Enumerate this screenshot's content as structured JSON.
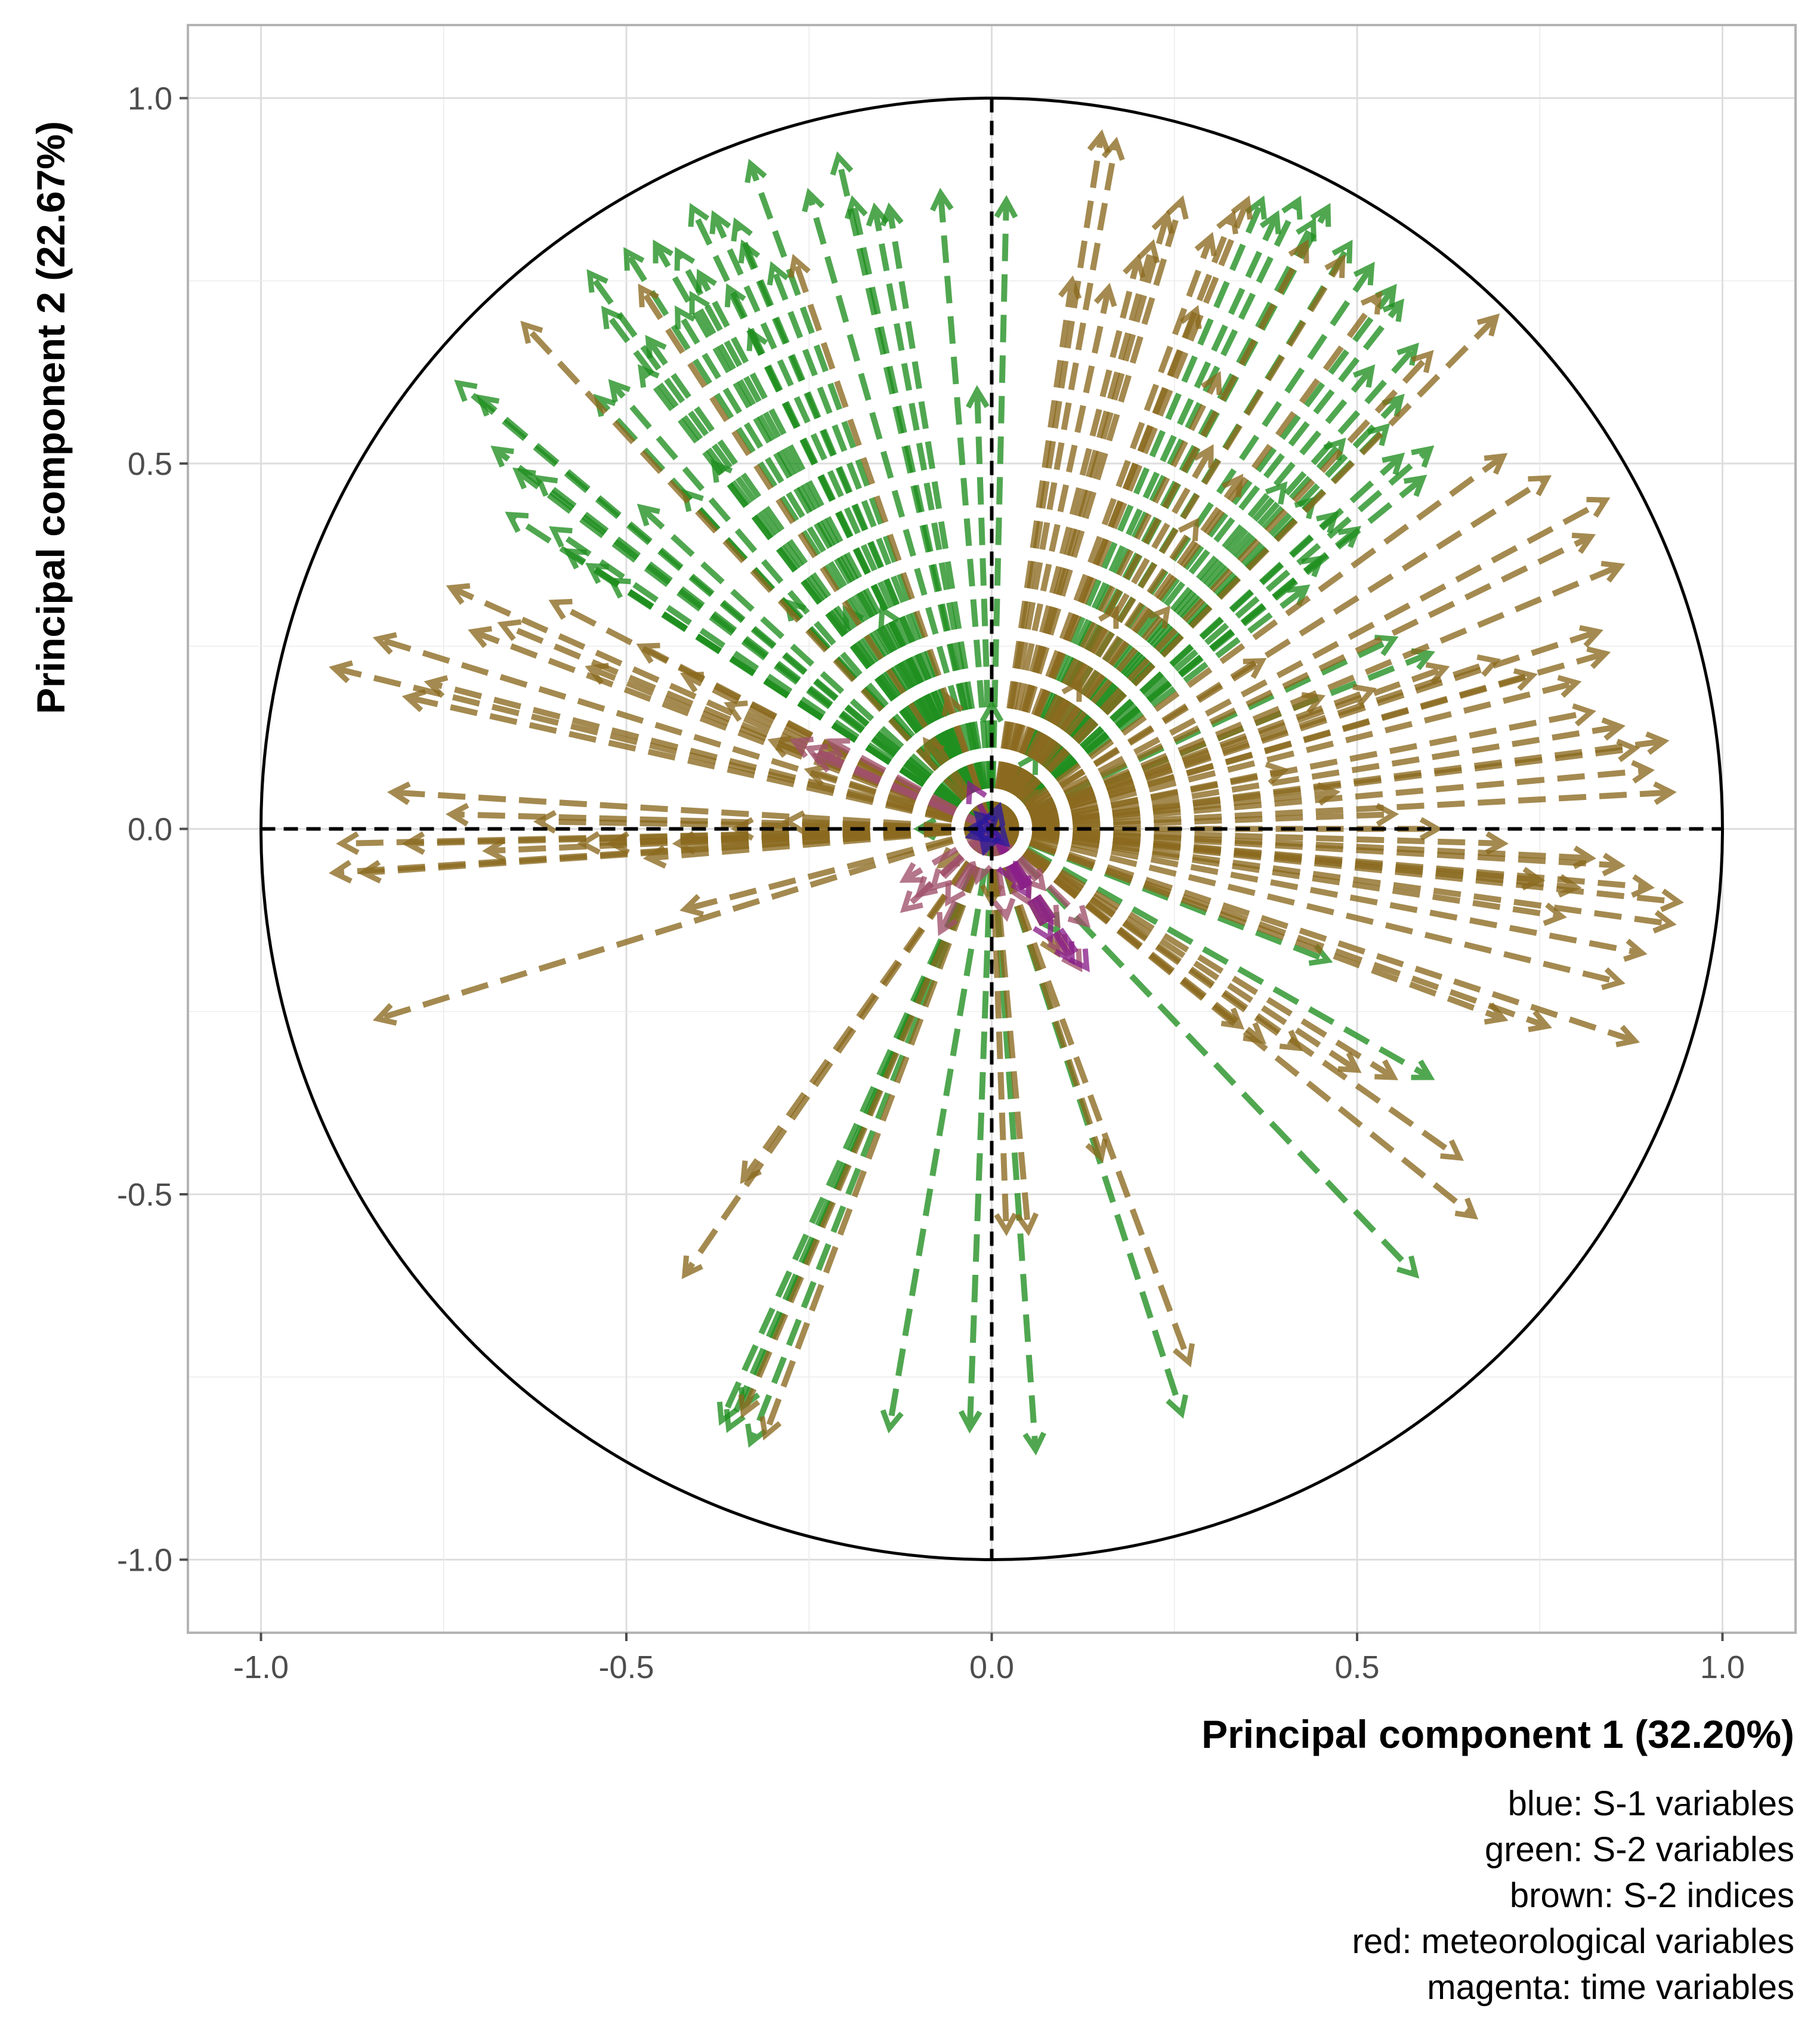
{
  "chart_data": {
    "type": "scatter",
    "subtype": "PCA correlation circle (variable loading arrows)",
    "xlabel": "Principal component 1 (32.20%)",
    "ylabel": "Principal component 2 (22.67%)",
    "xlim": [
      -1.1,
      1.1
    ],
    "ylim": [
      -1.1,
      1.1
    ],
    "x_ticks": [
      "-1.0",
      "-0.5",
      "0.0",
      "0.5",
      "1.0"
    ],
    "y_ticks": [
      "1.0",
      "0.5",
      "0.0",
      "-0.5",
      "-1.0"
    ],
    "grid": true,
    "unit_circle": true,
    "colors": {
      "blue": "#2b1a9c",
      "green": "#1f8f1f",
      "brown": "#8b6a1f",
      "red": "#a0506a",
      "magenta": "#8a1f8a"
    },
    "caption_lines": [
      "blue: S-1 variables",
      "green: S-2 variables",
      "brown: S-2 indices",
      "red: meteorological variables",
      "magenta: time variables"
    ],
    "series": [
      {
        "name": "S-2 variables",
        "color": "green",
        "points": [
          [
            -0.73,
            0.61
          ],
          [
            -0.7,
            0.59
          ],
          [
            -0.68,
            0.52
          ],
          [
            -0.65,
            0.49
          ],
          [
            -0.62,
            0.48
          ],
          [
            -0.66,
            0.43
          ],
          [
            -0.6,
            0.41
          ],
          [
            -0.58,
            0.38
          ],
          [
            -0.55,
            0.36
          ],
          [
            -0.52,
            0.34
          ],
          [
            -0.48,
            0.44
          ],
          [
            -0.42,
            0.46
          ],
          [
            -0.38,
            0.5
          ],
          [
            -0.54,
            0.59
          ],
          [
            -0.52,
            0.61
          ],
          [
            -0.48,
            0.63
          ],
          [
            -0.43,
            0.71
          ],
          [
            -0.47,
            0.67
          ],
          [
            -0.4,
            0.76
          ],
          [
            -0.36,
            0.74
          ],
          [
            -0.33,
            0.68
          ],
          [
            -0.41,
            0.73
          ],
          [
            -0.35,
            0.83
          ],
          [
            -0.43,
            0.79
          ],
          [
            -0.46,
            0.8
          ],
          [
            -0.5,
            0.79
          ],
          [
            -0.55,
            0.76
          ],
          [
            -0.53,
            0.71
          ],
          [
            -0.41,
            0.85
          ],
          [
            -0.38,
            0.84
          ],
          [
            -0.34,
            0.8
          ],
          [
            -0.3,
            0.77
          ],
          [
            -0.33,
            0.91
          ],
          [
            -0.25,
            0.87
          ],
          [
            -0.21,
            0.92
          ],
          [
            -0.19,
            0.86
          ],
          [
            -0.16,
            0.85
          ],
          [
            -0.14,
            0.85
          ],
          [
            -0.07,
            0.87
          ],
          [
            0.02,
            0.86
          ],
          [
            -0.02,
            0.6
          ],
          [
            -0.2,
            0.3
          ],
          [
            -0.28,
            0.31
          ],
          [
            -0.15,
            0.3
          ],
          [
            0.0,
            0.17
          ],
          [
            0.37,
            0.86
          ],
          [
            0.39,
            0.84
          ],
          [
            0.42,
            0.86
          ],
          [
            0.46,
            0.85
          ],
          [
            0.44,
            0.83
          ],
          [
            0.49,
            0.8
          ],
          [
            0.52,
            0.77
          ],
          [
            0.55,
            0.74
          ],
          [
            0.56,
            0.72
          ],
          [
            0.58,
            0.66
          ],
          [
            0.56,
            0.59
          ],
          [
            0.52,
            0.63
          ],
          [
            0.54,
            0.55
          ],
          [
            0.48,
            0.53
          ],
          [
            0.56,
            0.51
          ],
          [
            0.6,
            0.52
          ],
          [
            0.59,
            0.48
          ],
          [
            0.44,
            0.45
          ],
          [
            0.4,
            0.47
          ],
          [
            0.47,
            0.43
          ],
          [
            0.5,
            0.41
          ],
          [
            0.45,
            0.37
          ],
          [
            0.43,
            0.33
          ],
          [
            0.55,
            0.26
          ],
          [
            0.6,
            0.24
          ],
          [
            0.46,
            -0.18
          ],
          [
            0.6,
            -0.34
          ],
          [
            0.58,
            -0.61
          ],
          [
            0.26,
            -0.8
          ],
          [
            0.06,
            -0.85
          ],
          [
            -0.03,
            -0.82
          ],
          [
            -0.14,
            -0.82
          ],
          [
            -0.37,
            -0.81
          ],
          [
            -0.34,
            -0.79
          ],
          [
            -0.33,
            -0.84
          ],
          [
            -0.36,
            -0.82
          ],
          [
            0.09,
            -0.14
          ],
          [
            -0.1,
            0.0
          ],
          [
            0.06,
            0.1
          ]
        ]
      },
      {
        "name": "S-2 indices",
        "color": "brown",
        "points": [
          [
            -0.9,
            0.22
          ],
          [
            -0.84,
            0.26
          ],
          [
            -0.8,
            0.18
          ],
          [
            -0.74,
            0.33
          ],
          [
            -0.77,
            0.2
          ],
          [
            -0.71,
            0.27
          ],
          [
            -0.67,
            0.28
          ],
          [
            -0.6,
            0.31
          ],
          [
            -0.55,
            0.22
          ],
          [
            -0.48,
            0.25
          ],
          [
            -0.42,
            0.21
          ],
          [
            -0.36,
            0.17
          ],
          [
            -0.3,
            0.12
          ],
          [
            -0.25,
            0.08
          ],
          [
            -0.82,
            0.05
          ],
          [
            -0.9,
            -0.06
          ],
          [
            -0.89,
            -0.02
          ],
          [
            -0.86,
            -0.06
          ],
          [
            -0.8,
            -0.02
          ],
          [
            -0.74,
            0.02
          ],
          [
            -0.69,
            -0.03
          ],
          [
            -0.62,
            0.01
          ],
          [
            -0.56,
            -0.02
          ],
          [
            -0.52,
            -0.02
          ],
          [
            -0.47,
            -0.04
          ],
          [
            -0.43,
            -0.02
          ],
          [
            -0.35,
            0.0
          ],
          [
            -0.28,
            0.01
          ],
          [
            -0.42,
            -0.11
          ],
          [
            -0.84,
            -0.26
          ],
          [
            -0.64,
            0.69
          ],
          [
            -0.48,
            0.74
          ],
          [
            -0.27,
            0.78
          ],
          [
            -0.42,
            -0.61
          ],
          [
            -0.34,
            -0.48
          ],
          [
            -0.34,
            -0.8
          ],
          [
            -0.31,
            -0.83
          ],
          [
            0.02,
            -0.55
          ],
          [
            0.05,
            -0.55
          ],
          [
            0.27,
            -0.73
          ],
          [
            0.15,
            -0.45
          ],
          [
            0.09,
            -0.17
          ],
          [
            0.0,
            -0.1
          ],
          [
            0.66,
            -0.53
          ],
          [
            0.64,
            -0.45
          ],
          [
            0.55,
            -0.34
          ],
          [
            0.5,
            -0.33
          ],
          [
            0.42,
            -0.3
          ],
          [
            0.37,
            -0.29
          ],
          [
            0.34,
            -0.27
          ],
          [
            0.7,
            -0.26
          ],
          [
            0.76,
            -0.27
          ],
          [
            0.88,
            -0.29
          ],
          [
            0.86,
            -0.21
          ],
          [
            0.89,
            -0.17
          ],
          [
            0.93,
            -0.13
          ],
          [
            0.94,
            -0.1
          ],
          [
            0.9,
            -0.08
          ],
          [
            0.86,
            -0.05
          ],
          [
            0.82,
            -0.04
          ],
          [
            0.8,
            -0.08
          ],
          [
            0.78,
            -0.12
          ],
          [
            0.75,
            -0.07
          ],
          [
            0.7,
            -0.02
          ],
          [
            0.61,
            0.0
          ],
          [
            0.55,
            0.02
          ],
          [
            0.47,
            0.05
          ],
          [
            0.4,
            0.08
          ],
          [
            0.93,
            0.05
          ],
          [
            0.9,
            0.08
          ],
          [
            0.88,
            0.11
          ],
          [
            0.92,
            0.12
          ],
          [
            0.86,
            0.14
          ],
          [
            0.82,
            0.16
          ],
          [
            0.8,
            0.2
          ],
          [
            0.74,
            0.21
          ],
          [
            0.69,
            0.23
          ],
          [
            0.62,
            0.22
          ],
          [
            0.52,
            0.19
          ],
          [
            0.45,
            0.18
          ],
          [
            0.37,
            0.23
          ],
          [
            0.84,
            0.24
          ],
          [
            0.83,
            0.27
          ],
          [
            0.86,
            0.36
          ],
          [
            0.82,
            0.4
          ],
          [
            0.84,
            0.45
          ],
          [
            0.76,
            0.48
          ],
          [
            0.7,
            0.51
          ],
          [
            0.15,
            0.95
          ],
          [
            0.17,
            0.94
          ],
          [
            0.11,
            0.75
          ],
          [
            0.16,
            0.74
          ],
          [
            0.2,
            0.78
          ],
          [
            0.22,
            0.8
          ],
          [
            0.24,
            0.84
          ],
          [
            0.26,
            0.86
          ],
          [
            0.3,
            0.81
          ],
          [
            0.33,
            0.84
          ],
          [
            0.35,
            0.86
          ],
          [
            0.43,
            0.8
          ],
          [
            0.48,
            0.78
          ],
          [
            0.53,
            0.73
          ],
          [
            0.6,
            0.65
          ],
          [
            0.69,
            0.7
          ],
          [
            0.28,
            0.71
          ],
          [
            0.31,
            0.62
          ],
          [
            0.3,
            0.52
          ],
          [
            0.34,
            0.48
          ],
          [
            0.28,
            0.42
          ],
          [
            0.24,
            0.3
          ],
          [
            0.17,
            0.3
          ],
          [
            0.12,
            0.2
          ],
          [
            0.06,
            0.05
          ],
          [
            -0.07,
            -0.05
          ],
          [
            -0.06,
            0.18
          ],
          [
            -0.09,
            0.12
          ]
        ]
      },
      {
        "name": "meteorological variables",
        "color": "red",
        "points": [
          [
            -0.27,
            0.12
          ],
          [
            -0.25,
            0.11
          ],
          [
            -0.24,
            0.1
          ],
          [
            -0.22,
            0.12
          ],
          [
            -0.12,
            -0.07
          ],
          [
            -0.1,
            -0.09
          ],
          [
            -0.08,
            -0.08
          ],
          [
            -0.06,
            -0.1
          ],
          [
            -0.12,
            -0.11
          ],
          [
            -0.07,
            -0.14
          ],
          [
            0.05,
            -0.1
          ],
          [
            0.12,
            -0.19
          ],
          [
            0.09,
            -0.13
          ],
          [
            0.13,
            -0.13
          ],
          [
            0.1,
            -0.17
          ],
          [
            0.07,
            -0.08
          ],
          [
            -0.02,
            -0.07
          ],
          [
            0.02,
            -0.12
          ]
        ]
      },
      {
        "name": "time variables",
        "color": "magenta",
        "points": [
          [
            0.05,
            -0.09
          ],
          [
            0.08,
            -0.15
          ],
          [
            0.11,
            -0.18
          ],
          [
            0.13,
            -0.19
          ],
          [
            0.03,
            -0.07
          ],
          [
            -0.03,
            0.06
          ]
        ]
      },
      {
        "name": "S-1 variables",
        "color": "blue",
        "points": [
          [
            -0.02,
            0.02
          ],
          [
            -0.03,
            -0.01
          ],
          [
            -0.01,
            -0.03
          ],
          [
            0.01,
            0.03
          ],
          [
            -0.03,
            0.0
          ],
          [
            0.02,
            -0.02
          ]
        ]
      }
    ]
  }
}
